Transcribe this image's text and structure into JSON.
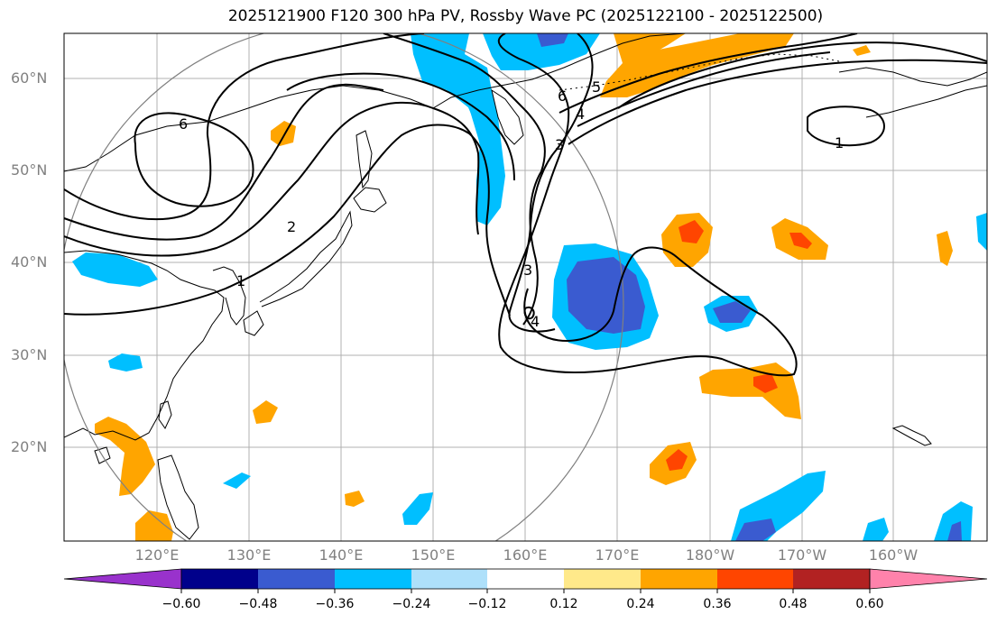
{
  "title": "2025121900 F120 300 hPa PV, Rossby Wave PC (2025122100 - 2025122500)",
  "lat_labels": [
    "60°N",
    "50°N",
    "40°N",
    "30°N",
    "20°N"
  ],
  "lon_labels": [
    "120°E",
    "130°E",
    "140°E",
    "150°E",
    "160°E",
    "170°E",
    "180°W",
    "170°W",
    "160°W"
  ],
  "colorbar": {
    "ticks": [
      "−0.60",
      "−0.48",
      "−0.36",
      "−0.24",
      "−0.12",
      "0.12",
      "0.24",
      "0.36",
      "0.48",
      "0.60"
    ],
    "colors": [
      "#9932cc",
      "#00008b",
      "#3a5bd0",
      "#00bfff",
      "#aee0fa",
      "#ffffff",
      "#ffe98a",
      "#ffa500",
      "#ff4500",
      "#b22222",
      "#ff82ab"
    ]
  },
  "contour_labels": [
    "6",
    "2",
    "1",
    "3",
    "4",
    "5",
    "6",
    "3",
    "4",
    "1"
  ],
  "colors": {
    "neg_strong": "#3a5bd0",
    "neg_mid": "#00bfff",
    "neg_weak": "#aee0fa",
    "pos_weak": "#ffe98a",
    "pos_mid": "#ffa500",
    "pos_strong": "#ff4500",
    "grid": "#b0b0b0",
    "circle": "#808080"
  }
}
